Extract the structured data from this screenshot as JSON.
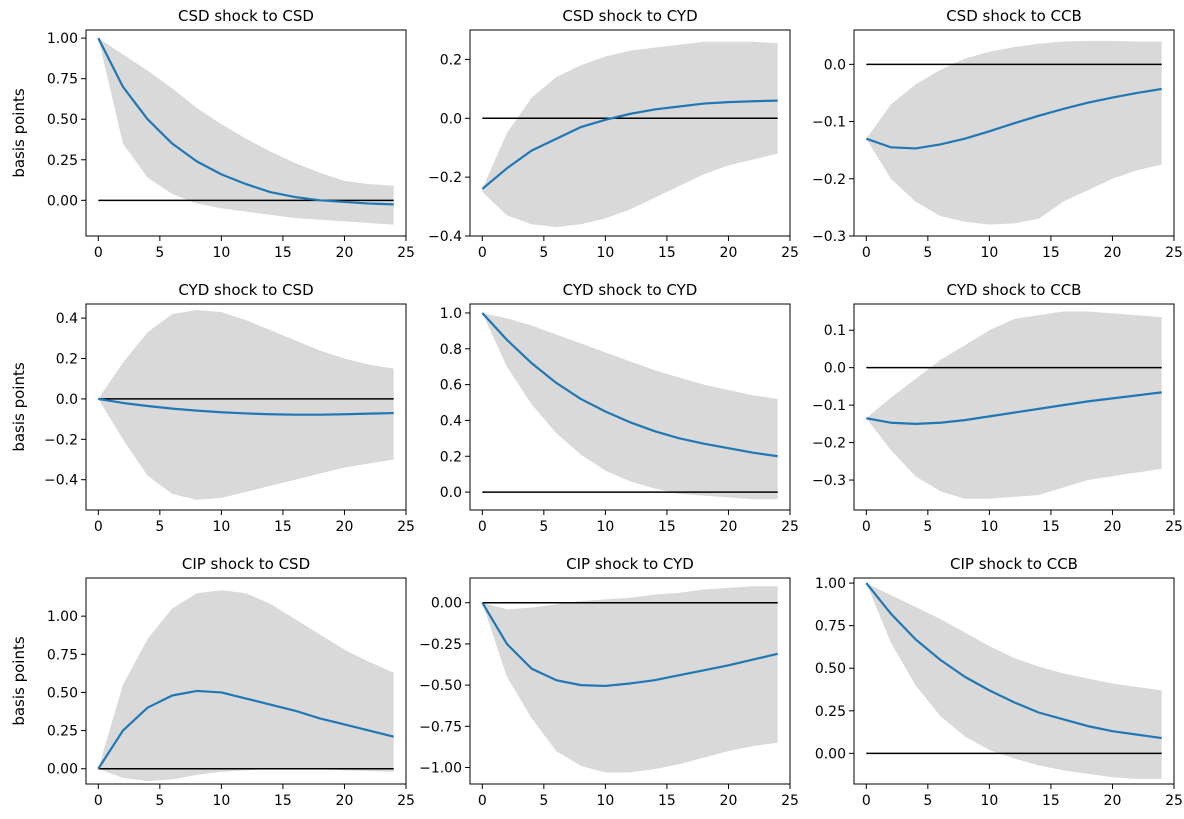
{
  "chart_data": [
    {
      "type": "line",
      "title": "CSD shock to CSD",
      "ylabel": "basis points",
      "xlim": [
        -1,
        25
      ],
      "ylim": [
        -0.22,
        1.05
      ],
      "xticks": [
        0,
        5,
        10,
        15,
        20,
        25
      ],
      "yticks": [
        0,
        0.25,
        0.5,
        0.75,
        1
      ],
      "ytick_labels": [
        "0.00",
        "0.25",
        "0.50",
        "0.75",
        "1.00"
      ],
      "series": [
        {
          "x": [
            0,
            2,
            4,
            6,
            8,
            10,
            12,
            14,
            16,
            18,
            20,
            22,
            24
          ],
          "values": [
            1.0,
            0.7,
            0.5,
            0.35,
            0.24,
            0.16,
            0.1,
            0.05,
            0.02,
            0.0,
            -0.01,
            -0.02,
            -0.025
          ]
        }
      ],
      "band": {
        "x": [
          0,
          2,
          4,
          6,
          8,
          10,
          12,
          14,
          16,
          18,
          20,
          22,
          24
        ],
        "lower": [
          1.0,
          0.35,
          0.14,
          0.04,
          -0.02,
          -0.05,
          -0.07,
          -0.09,
          -0.11,
          -0.12,
          -0.13,
          -0.14,
          -0.15
        ],
        "upper": [
          1.0,
          0.9,
          0.8,
          0.69,
          0.57,
          0.47,
          0.38,
          0.3,
          0.23,
          0.17,
          0.12,
          0.1,
          0.09
        ]
      },
      "zero_line": 0
    },
    {
      "type": "line",
      "title": "CSD shock to CYD",
      "ylabel": "",
      "xlim": [
        -1,
        25
      ],
      "ylim": [
        -0.4,
        0.3
      ],
      "xticks": [
        0,
        5,
        10,
        15,
        20,
        25
      ],
      "yticks": [
        -0.4,
        -0.2,
        0,
        0.2
      ],
      "ytick_labels": [
        "−0.4",
        "−0.2",
        "0.0",
        "0.2"
      ],
      "series": [
        {
          "x": [
            0,
            2,
            4,
            6,
            8,
            10,
            12,
            14,
            16,
            18,
            20,
            22,
            24
          ],
          "values": [
            -0.24,
            -0.17,
            -0.11,
            -0.07,
            -0.03,
            -0.005,
            0.015,
            0.03,
            0.04,
            0.05,
            0.055,
            0.058,
            0.06
          ]
        }
      ],
      "band": {
        "x": [
          0,
          2,
          4,
          6,
          8,
          10,
          12,
          14,
          16,
          18,
          20,
          22,
          24
        ],
        "lower": [
          -0.25,
          -0.33,
          -0.36,
          -0.37,
          -0.36,
          -0.34,
          -0.31,
          -0.27,
          -0.23,
          -0.19,
          -0.16,
          -0.14,
          -0.12
        ],
        "upper": [
          -0.24,
          -0.05,
          0.07,
          0.14,
          0.18,
          0.21,
          0.23,
          0.24,
          0.25,
          0.26,
          0.26,
          0.26,
          0.255
        ]
      },
      "zero_line": 0
    },
    {
      "type": "line",
      "title": "CSD shock to CCB",
      "ylabel": "",
      "xlim": [
        -1,
        25
      ],
      "ylim": [
        -0.3,
        0.06
      ],
      "xticks": [
        0,
        5,
        10,
        15,
        20,
        25
      ],
      "yticks": [
        -0.3,
        -0.2,
        -0.1,
        0
      ],
      "ytick_labels": [
        "−0.3",
        "−0.2",
        "−0.1",
        "0.0"
      ],
      "series": [
        {
          "x": [
            0,
            2,
            4,
            6,
            8,
            10,
            12,
            14,
            16,
            18,
            20,
            22,
            24
          ],
          "values": [
            -0.13,
            -0.145,
            -0.147,
            -0.14,
            -0.13,
            -0.117,
            -0.103,
            -0.09,
            -0.078,
            -0.067,
            -0.058,
            -0.05,
            -0.043
          ]
        }
      ],
      "band": {
        "x": [
          0,
          2,
          4,
          6,
          8,
          10,
          12,
          14,
          16,
          18,
          20,
          22,
          24
        ],
        "lower": [
          -0.13,
          -0.2,
          -0.24,
          -0.265,
          -0.275,
          -0.28,
          -0.278,
          -0.27,
          -0.24,
          -0.22,
          -0.2,
          -0.185,
          -0.175
        ],
        "upper": [
          -0.13,
          -0.07,
          -0.035,
          -0.01,
          0.01,
          0.022,
          0.03,
          0.036,
          0.04,
          0.041,
          0.041,
          0.04,
          0.04
        ]
      },
      "zero_line": 0
    },
    {
      "type": "line",
      "title": "CYD shock to CSD",
      "ylabel": "basis points",
      "xlim": [
        -1,
        25
      ],
      "ylim": [
        -0.55,
        0.47
      ],
      "xticks": [
        0,
        5,
        10,
        15,
        20,
        25
      ],
      "yticks": [
        -0.4,
        -0.2,
        0,
        0.2,
        0.4
      ],
      "ytick_labels": [
        "−0.4",
        "−0.2",
        "0.0",
        "0.2",
        "0.4"
      ],
      "series": [
        {
          "x": [
            0,
            2,
            4,
            6,
            8,
            10,
            12,
            14,
            16,
            18,
            20,
            22,
            24
          ],
          "values": [
            0,
            -0.02,
            -0.035,
            -0.048,
            -0.058,
            -0.066,
            -0.072,
            -0.076,
            -0.078,
            -0.078,
            -0.076,
            -0.073,
            -0.07
          ]
        }
      ],
      "band": {
        "x": [
          0,
          2,
          4,
          6,
          8,
          10,
          12,
          14,
          16,
          18,
          20,
          22,
          24
        ],
        "lower": [
          0,
          -0.2,
          -0.38,
          -0.47,
          -0.5,
          -0.49,
          -0.46,
          -0.43,
          -0.4,
          -0.37,
          -0.34,
          -0.32,
          -0.3
        ]
      },
      "zero_line": 0
    },
    {
      "type": "line",
      "title": "CYD shock to CYD",
      "ylabel": "",
      "xlim": [
        -1,
        25
      ],
      "ylim": [
        -0.1,
        1.05
      ],
      "xticks": [
        0,
        5,
        10,
        15,
        20,
        25
      ],
      "yticks": [
        0,
        0.2,
        0.4,
        0.6,
        0.8,
        1
      ],
      "ytick_labels": [
        "0.0",
        "0.2",
        "0.4",
        "0.6",
        "0.8",
        "1.0"
      ],
      "series": [
        {
          "x": [
            0,
            2,
            4,
            6,
            8,
            10,
            12,
            14,
            16,
            18,
            20,
            22,
            24
          ],
          "values": [
            1.0,
            0.85,
            0.72,
            0.61,
            0.52,
            0.45,
            0.39,
            0.34,
            0.3,
            0.27,
            0.245,
            0.22,
            0.2
          ]
        }
      ],
      "band": {
        "x": [
          0,
          2,
          4,
          6,
          8,
          10,
          12,
          14,
          16,
          18,
          20,
          22,
          24
        ],
        "lower": [
          1.0,
          0.7,
          0.49,
          0.33,
          0.21,
          0.12,
          0.06,
          0.02,
          -0.01,
          -0.02,
          -0.03,
          -0.04,
          -0.04
        ],
        "upper": [
          1.0,
          0.97,
          0.93,
          0.88,
          0.83,
          0.78,
          0.73,
          0.68,
          0.64,
          0.6,
          0.57,
          0.54,
          0.52
        ]
      },
      "zero_line": 0
    },
    {
      "type": "line",
      "title": "CYD shock to CCB",
      "ylabel": "",
      "xlim": [
        -1,
        25
      ],
      "ylim": [
        -0.38,
        0.17
      ],
      "xticks": [
        0,
        5,
        10,
        15,
        20,
        25
      ],
      "yticks": [
        -0.3,
        -0.2,
        -0.1,
        0,
        0.1
      ],
      "ytick_labels": [
        "−0.3",
        "−0.2",
        "−0.1",
        "0.0",
        "0.1"
      ],
      "series": [
        {
          "x": [
            0,
            2,
            4,
            6,
            8,
            10,
            12,
            14,
            16,
            18,
            20,
            22,
            24
          ],
          "values": [
            -0.135,
            -0.147,
            -0.15,
            -0.147,
            -0.14,
            -0.13,
            -0.12,
            -0.11,
            -0.1,
            -0.09,
            -0.082,
            -0.074,
            -0.066
          ]
        }
      ],
      "band": {
        "x": [
          0,
          2,
          4,
          6,
          8,
          10,
          12,
          14,
          16,
          18,
          20,
          22,
          24
        ],
        "lower": [
          -0.135,
          -0.22,
          -0.29,
          -0.33,
          -0.35,
          -0.35,
          -0.345,
          -0.34,
          -0.32,
          -0.3,
          -0.29,
          -0.28,
          -0.27
        ],
        "upper": [
          -0.135,
          -0.08,
          -0.03,
          0.02,
          0.06,
          0.1,
          0.13,
          0.14,
          0.15,
          0.15,
          0.145,
          0.14,
          0.135
        ]
      },
      "zero_line": 0
    },
    {
      "type": "line",
      "title": "CIP shock to CSD",
      "ylabel": "basis points",
      "xlim": [
        -1,
        25
      ],
      "ylim": [
        -0.1,
        1.25
      ],
      "xticks": [
        0,
        5,
        10,
        15,
        20,
        25
      ],
      "yticks": [
        0,
        0.25,
        0.5,
        0.75,
        1
      ],
      "ytick_labels": [
        "0.00",
        "0.25",
        "0.50",
        "0.75",
        "1.00"
      ],
      "series": [
        {
          "x": [
            0,
            2,
            4,
            6,
            8,
            10,
            12,
            14,
            16,
            18,
            20,
            22,
            24
          ],
          "values": [
            0,
            0.25,
            0.4,
            0.48,
            0.51,
            0.5,
            0.46,
            0.42,
            0.38,
            0.33,
            0.29,
            0.25,
            0.21
          ]
        }
      ],
      "band": {
        "x": [
          0,
          2,
          4,
          6,
          8,
          10,
          12,
          14,
          16,
          18,
          20,
          22,
          24
        ],
        "lower": [
          0,
          -0.06,
          -0.08,
          -0.07,
          -0.04,
          -0.02,
          -0.01,
          0,
          0,
          0,
          -0.01,
          -0.015,
          -0.02
        ],
        "upper": [
          0,
          0.55,
          0.85,
          1.05,
          1.15,
          1.17,
          1.15,
          1.08,
          0.98,
          0.88,
          0.78,
          0.7,
          0.63
        ]
      },
      "zero_line": 0
    },
    {
      "type": "line",
      "title": "CIP shock to CYD",
      "ylabel": "",
      "xlim": [
        -1,
        25
      ],
      "ylim": [
        -1.1,
        0.15
      ],
      "xticks": [
        0,
        5,
        10,
        15,
        20,
        25
      ],
      "yticks": [
        -1,
        -0.75,
        -0.5,
        -0.25,
        0
      ],
      "ytick_labels": [
        "−1.00",
        "−0.75",
        "−0.50",
        "−0.25",
        "0.00"
      ],
      "series": [
        {
          "x": [
            0,
            2,
            4,
            6,
            8,
            10,
            12,
            14,
            16,
            18,
            20,
            22,
            24
          ],
          "values": [
            0,
            -0.25,
            -0.4,
            -0.47,
            -0.5,
            -0.505,
            -0.49,
            -0.47,
            -0.44,
            -0.41,
            -0.38,
            -0.345,
            -0.31
          ]
        }
      ],
      "band": {
        "x": [
          0,
          2,
          4,
          6,
          8,
          10,
          12,
          14,
          16,
          18,
          20,
          22,
          24
        ],
        "lower": [
          0,
          -0.45,
          -0.7,
          -0.9,
          -0.99,
          -1.03,
          -1.03,
          -1.01,
          -0.98,
          -0.94,
          -0.9,
          -0.87,
          -0.85
        ],
        "upper": [
          0,
          -0.04,
          -0.03,
          -0.01,
          0.01,
          0.02,
          0.03,
          0.05,
          0.06,
          0.08,
          0.09,
          0.1,
          0.1
        ]
      },
      "zero_line": 0
    },
    {
      "type": "line",
      "title": "CIP shock to CCB",
      "ylabel": "",
      "xlim": [
        -1,
        25
      ],
      "ylim": [
        -0.18,
        1.03
      ],
      "xticks": [
        0,
        5,
        10,
        15,
        20,
        25
      ],
      "yticks": [
        0,
        0.25,
        0.5,
        0.75,
        1
      ],
      "ytick_labels": [
        "0.00",
        "0.25",
        "0.50",
        "0.75",
        "1.00"
      ],
      "series": [
        {
          "x": [
            0,
            2,
            4,
            6,
            8,
            10,
            12,
            14,
            16,
            18,
            20,
            22,
            24
          ],
          "values": [
            1.0,
            0.82,
            0.67,
            0.55,
            0.45,
            0.37,
            0.3,
            0.24,
            0.2,
            0.16,
            0.13,
            0.11,
            0.09
          ]
        }
      ],
      "band": {
        "x": [
          0,
          2,
          4,
          6,
          8,
          10,
          12,
          14,
          16,
          18,
          20,
          22,
          24
        ],
        "lower": [
          1.0,
          0.65,
          0.4,
          0.22,
          0.1,
          0.02,
          -0.03,
          -0.07,
          -0.1,
          -0.12,
          -0.14,
          -0.15,
          -0.15
        ],
        "upper": [
          1.0,
          0.93,
          0.86,
          0.79,
          0.71,
          0.63,
          0.56,
          0.51,
          0.47,
          0.44,
          0.41,
          0.39,
          0.37
        ]
      },
      "zero_line": 0
    }
  ],
  "style": {
    "line_color": "#1f77b4",
    "band_color": "#d9d9d9",
    "zero_color": "#000000"
  }
}
